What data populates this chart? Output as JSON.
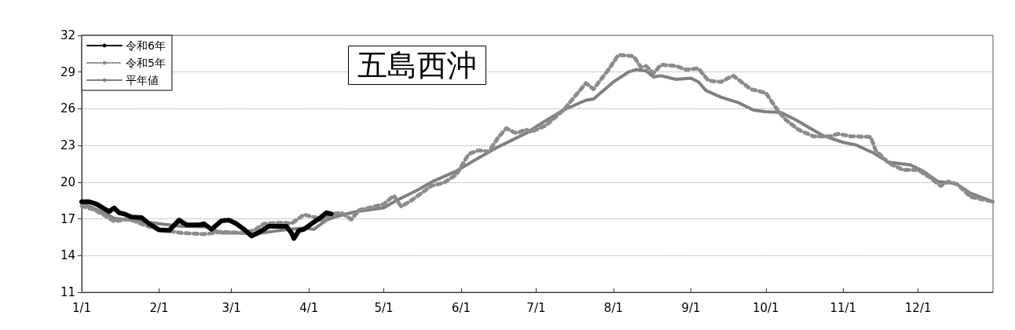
{
  "chart_data": {
    "type": "line",
    "title": "五島西沖",
    "xlim": [
      "--01-01",
      "--12-31"
    ],
    "xticks": [
      {
        "value": "--01-01",
        "label": "1/1"
      },
      {
        "value": "--02-01",
        "label": "2/1"
      },
      {
        "value": "--03-01",
        "label": "3/1"
      },
      {
        "value": "--04-01",
        "label": "4/1"
      },
      {
        "value": "--05-01",
        "label": "5/1"
      },
      {
        "value": "--06-01",
        "label": "6/1"
      },
      {
        "value": "--07-01",
        "label": "7/1"
      },
      {
        "value": "--08-01",
        "label": "8/1"
      },
      {
        "value": "--09-01",
        "label": "9/1"
      },
      {
        "value": "--10-01",
        "label": "10/1"
      },
      {
        "value": "--11-01",
        "label": "11/1"
      },
      {
        "value": "--12-01",
        "label": "12/1"
      }
    ],
    "ylim": [
      11,
      32
    ],
    "yticks": [
      11,
      14,
      17,
      20,
      23,
      26,
      29,
      32
    ],
    "grid": "y",
    "legend": "top left",
    "marker": "none",
    "series": [
      {
        "name": "令和6年",
        "color": "#000000",
        "line_style": "solid",
        "x": [
          "--01-01",
          "--01-04",
          "--01-07",
          "--01-12",
          "--01-14",
          "--01-16",
          "--01-18",
          "--01-21",
          "--01-25",
          "--01-28",
          "--02-01",
          "--02-05",
          "--02-09",
          "--02-12",
          "--02-17",
          "--02-19",
          "--02-22",
          "--02-26",
          "--02-29",
          "--03-03",
          "--03-06",
          "--03-09",
          "--03-12",
          "--03-16",
          "--03-23",
          "--03-25",
          "--03-26",
          "--03-28",
          "--03-30",
          "--04-02",
          "--04-05",
          "--04-08",
          "--04-10"
        ],
        "values": [
          18.4,
          18.4,
          18.2,
          17.6,
          17.9,
          17.5,
          17.4,
          17.15,
          17.1,
          16.6,
          16.1,
          16.05,
          16.9,
          16.5,
          16.5,
          16.6,
          16.15,
          16.85,
          16.9,
          16.6,
          16.15,
          15.6,
          15.9,
          16.4,
          16.4,
          15.85,
          15.4,
          16.05,
          16.15,
          16.6,
          17.0,
          17.5,
          17.4
        ]
      },
      {
        "name": "令和5年",
        "color": "#8c8c8c",
        "line_style": "dotted",
        "x": [
          "--01-01",
          "--01-06",
          "--01-10",
          "--01-14",
          "--01-20",
          "--01-26",
          "--02-01",
          "--02-10",
          "--02-19",
          "--02-26",
          "--03-05",
          "--03-10",
          "--03-14",
          "--03-22",
          "--03-25",
          "--03-30",
          "--04-04",
          "--04-06",
          "--04-10",
          "--04-14",
          "--04-18",
          "--04-21",
          "--05-01",
          "--05-05",
          "--05-08",
          "--05-12",
          "--05-20",
          "--05-25",
          "--05-30",
          "--06-04",
          "--06-08",
          "--06-12",
          "--06-16",
          "--06-19",
          "--06-23",
          "--06-27",
          "--06-29",
          "--07-05",
          "--07-12",
          "--07-21",
          "--07-24",
          "--07-30",
          "--08-03",
          "--08-09",
          "--08-12",
          "--08-14",
          "--08-17",
          "--08-20",
          "--08-26",
          "--08-30",
          "--09-04",
          "--09-08",
          "--09-13",
          "--09-18",
          "--09-25",
          "--10-01",
          "--10-06",
          "--10-09",
          "--10-14",
          "--10-20",
          "--10-27",
          "--10-30",
          "--11-04",
          "--11-12",
          "--11-14",
          "--11-19",
          "--11-25",
          "--12-01",
          "--12-06",
          "--12-10",
          "--12-13",
          "--12-17",
          "--12-22",
          "--12-31"
        ],
        "values": [
          18.05,
          17.75,
          17.3,
          16.8,
          17.0,
          16.5,
          16.15,
          15.85,
          15.75,
          15.95,
          15.85,
          16.05,
          16.6,
          16.7,
          16.6,
          17.35,
          17.1,
          16.9,
          17.4,
          17.5,
          16.95,
          17.7,
          18.2,
          18.9,
          18.0,
          18.5,
          19.7,
          19.95,
          20.6,
          22.3,
          22.6,
          22.5,
          23.7,
          24.4,
          24.0,
          24.3,
          24.1,
          24.65,
          25.9,
          28.1,
          27.6,
          29.2,
          30.4,
          30.3,
          29.4,
          29.5,
          28.9,
          29.6,
          29.5,
          29.2,
          29.3,
          28.3,
          28.2,
          28.7,
          27.6,
          27.3,
          25.8,
          25.1,
          24.3,
          23.75,
          23.75,
          23.95,
          23.75,
          23.7,
          22.6,
          21.6,
          21.0,
          21.0,
          20.35,
          19.7,
          20.05,
          19.8,
          18.8,
          18.4
        ]
      },
      {
        "name": "平年値",
        "color": "#808080",
        "line_style": "solid",
        "x": [
          "--01-01",
          "--01-10",
          "--01-14",
          "--01-25",
          "--02-01",
          "--02-10",
          "--02-20",
          "--02-26",
          "--03-05",
          "--03-10",
          "--03-20",
          "--03-30",
          "--04-03",
          "--04-08",
          "--04-12",
          "--04-20",
          "--05-01",
          "--05-06",
          "--05-14",
          "--05-21",
          "--05-30",
          "--06-06",
          "--06-15",
          "--06-21",
          "--06-27",
          "--07-03",
          "--07-12",
          "--07-21",
          "--07-24",
          "--08-01",
          "--08-07",
          "--08-10",
          "--08-14",
          "--08-17",
          "--08-20",
          "--08-26",
          "--09-01",
          "--09-04",
          "--09-07",
          "--09-13",
          "--09-20",
          "--09-26",
          "--10-01",
          "--10-07",
          "--10-13",
          "--10-18",
          "--10-24",
          "--11-01",
          "--11-06",
          "--11-13",
          "--11-19",
          "--11-28",
          "--12-03",
          "--12-09",
          "--12-16",
          "--12-22",
          "--12-31"
        ],
        "values": [
          18.3,
          17.5,
          17.05,
          16.8,
          16.6,
          16.4,
          16.35,
          15.85,
          15.85,
          15.75,
          16.05,
          16.25,
          16.15,
          16.9,
          17.2,
          17.6,
          17.9,
          18.5,
          19.3,
          20.1,
          20.9,
          21.75,
          22.8,
          23.4,
          24.0,
          24.8,
          25.9,
          26.7,
          26.8,
          28.2,
          29.0,
          29.2,
          29.1,
          28.6,
          28.7,
          28.4,
          28.5,
          28.2,
          27.5,
          26.95,
          26.5,
          25.9,
          25.75,
          25.7,
          25.1,
          24.5,
          23.8,
          23.25,
          23.05,
          22.4,
          21.65,
          21.4,
          20.9,
          20.05,
          19.9,
          19.1,
          18.4
        ]
      }
    ]
  }
}
